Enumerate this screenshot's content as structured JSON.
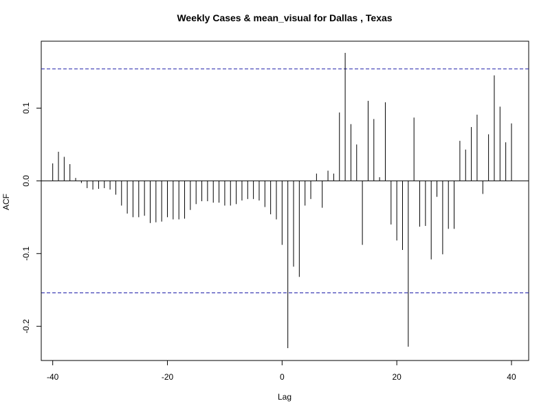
{
  "chart_data": {
    "type": "bar",
    "title": "Weekly Cases & mean_visual for Dallas , Texas",
    "xlabel": "Lag",
    "ylabel": "ACF",
    "xlim": [
      -42,
      43
    ],
    "ylim": [
      -0.247,
      0.192
    ],
    "x_ticks": [
      -40,
      -20,
      0,
      20,
      40
    ],
    "y_ticks": [
      -0.2,
      -0.1,
      0.0,
      0.1
    ],
    "x_tick_labels": [
      "-40",
      "-20",
      "0",
      "20",
      "40"
    ],
    "y_tick_labels": [
      "-0.2",
      "-0.1",
      "0.0",
      "0.1"
    ],
    "confidence_limits": [
      0.154,
      -0.154
    ],
    "grid": false,
    "x": [
      -40,
      -39,
      -38,
      -37,
      -36,
      -35,
      -34,
      -33,
      -32,
      -31,
      -30,
      -29,
      -28,
      -27,
      -26,
      -25,
      -24,
      -23,
      -22,
      -21,
      -20,
      -19,
      -18,
      -17,
      -16,
      -15,
      -14,
      -13,
      -12,
      -11,
      -10,
      -9,
      -8,
      -7,
      -6,
      -5,
      -4,
      -3,
      -2,
      -1,
      0,
      1,
      2,
      3,
      4,
      5,
      6,
      7,
      8,
      9,
      10,
      11,
      12,
      13,
      14,
      15,
      16,
      17,
      18,
      19,
      20,
      21,
      22,
      23,
      24,
      25,
      26,
      27,
      28,
      29,
      30,
      31,
      32,
      33,
      34,
      35,
      36,
      37,
      38,
      39,
      40
    ],
    "values": [
      0.024,
      0.04,
      0.033,
      0.023,
      0.004,
      -0.003,
      -0.01,
      -0.012,
      -0.011,
      -0.01,
      -0.012,
      -0.019,
      -0.034,
      -0.045,
      -0.05,
      -0.05,
      -0.048,
      -0.058,
      -0.057,
      -0.056,
      -0.05,
      -0.053,
      -0.053,
      -0.052,
      -0.04,
      -0.032,
      -0.028,
      -0.028,
      -0.03,
      -0.03,
      -0.034,
      -0.034,
      -0.032,
      -0.027,
      -0.025,
      -0.025,
      -0.027,
      -0.036,
      -0.046,
      -0.053,
      -0.088,
      -0.23,
      -0.118,
      -0.132,
      -0.034,
      -0.025,
      0.01,
      -0.037,
      0.014,
      0.01,
      0.094,
      0.176,
      0.078,
      0.05,
      -0.088,
      0.11,
      0.085,
      0.005,
      0.108,
      -0.06,
      -0.082,
      -0.095,
      -0.228,
      0.087,
      -0.063,
      -0.062,
      -0.108,
      -0.022,
      -0.101,
      -0.066,
      -0.066,
      0.055,
      0.043,
      0.074,
      0.091,
      -0.018,
      0.064,
      0.145,
      0.102,
      0.053,
      0.079
    ]
  }
}
